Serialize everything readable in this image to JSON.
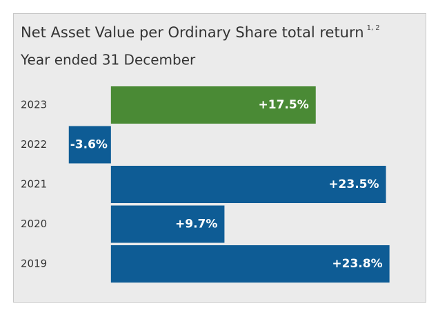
{
  "chart_data": {
    "type": "hbar",
    "title": "Net Asset Value per Ordinary Share total return",
    "title_note": "1, 2",
    "subtitle": "Year ended 31 December",
    "categories": [
      "2023",
      "2022",
      "2021",
      "2020",
      "2019"
    ],
    "values": [
      17.5,
      -3.6,
      23.5,
      9.7,
      23.8
    ],
    "value_labels": [
      "+17.5%",
      "-3.6%",
      "+23.5%",
      "+9.7%",
      "+23.8%"
    ],
    "colors": [
      "#4a8a35",
      "#0e5c95",
      "#0e5c95",
      "#0e5c95",
      "#0e5c95"
    ],
    "xlim": [
      -5,
      25
    ]
  }
}
